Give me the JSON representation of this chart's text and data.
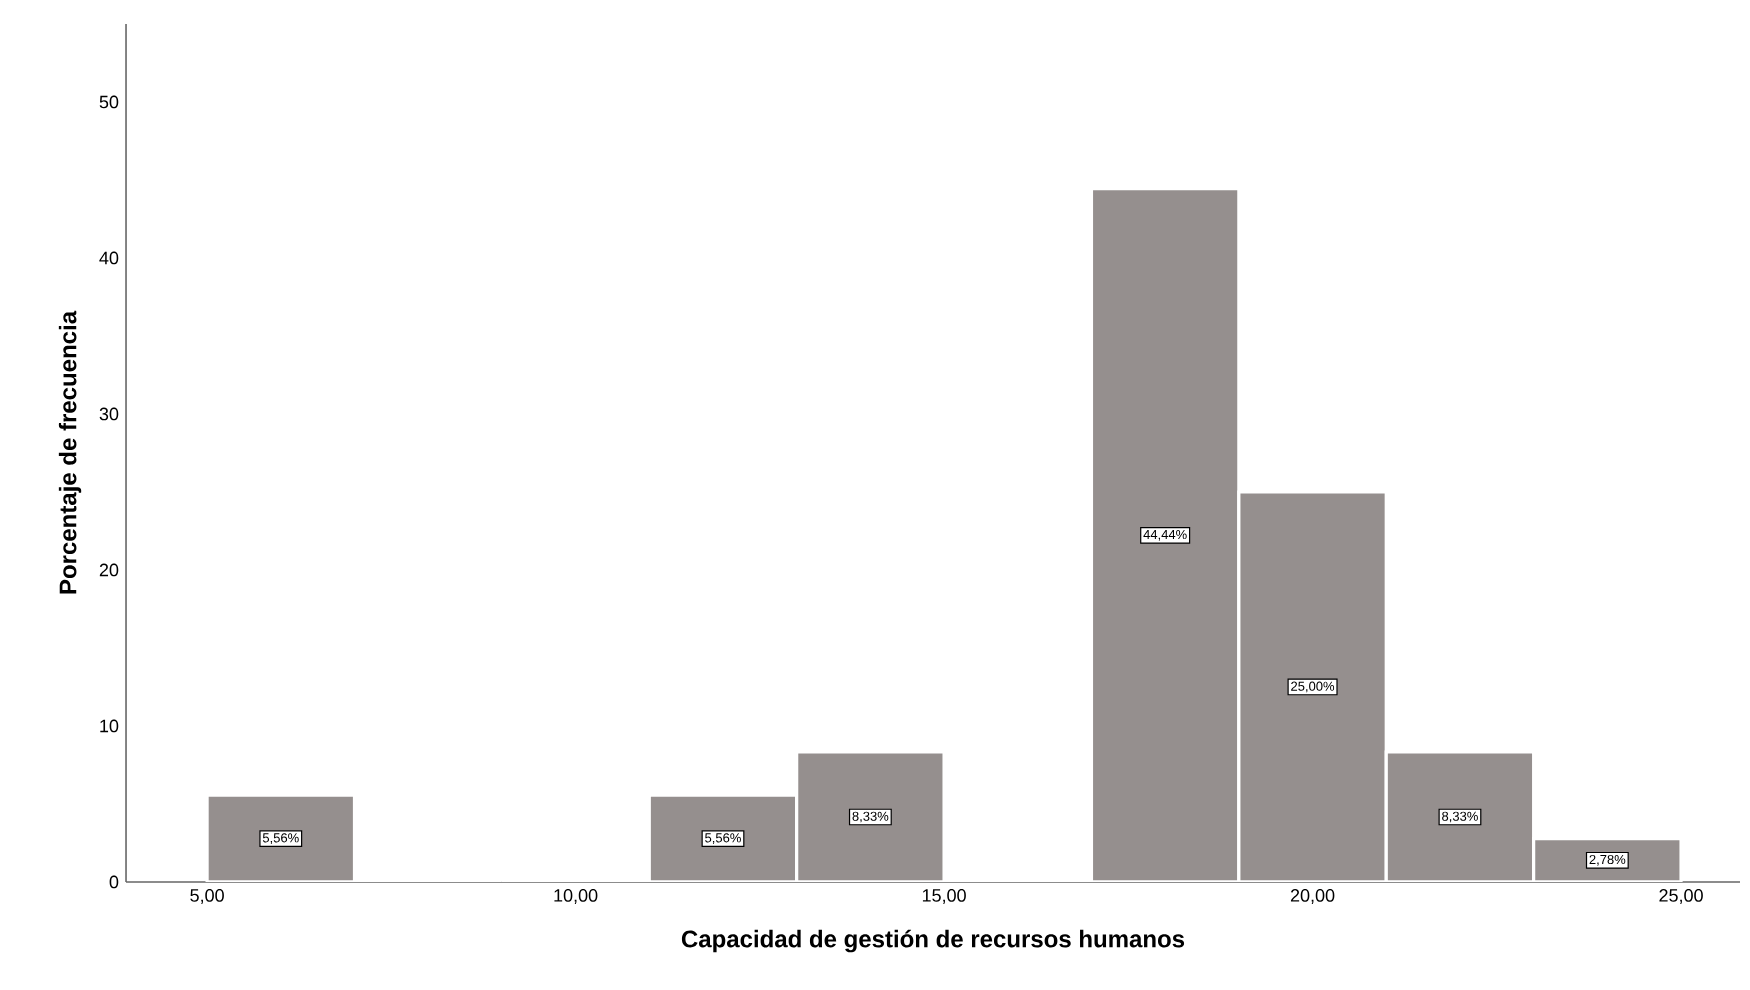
{
  "chart_data": {
    "type": "histogram",
    "xlabel": "Capacidad de gestión de recursos humanos",
    "ylabel": "Porcentaje de frecuencia",
    "bins": [
      5,
      7,
      9,
      11,
      13,
      15,
      17,
      19,
      21,
      23,
      25
    ],
    "values": [
      5.56,
      0,
      0,
      5.56,
      8.33,
      0,
      44.44,
      25.0,
      8.33,
      2.78
    ],
    "value_labels": [
      "5,56%",
      null,
      null,
      "5,56%",
      "8,33%",
      null,
      "44,44%",
      "25,00%",
      "8,33%",
      "2,78%"
    ],
    "color": "#958f8e",
    "xlim": [
      3.9,
      25.8
    ],
    "ylim": [
      0,
      55
    ],
    "xticks": [
      {
        "value": 5,
        "label": "5,00"
      },
      {
        "value": 10,
        "label": "10,00"
      },
      {
        "value": 15,
        "label": "15,00"
      },
      {
        "value": 20,
        "label": "20,00"
      },
      {
        "value": 25,
        "label": "25,00"
      }
    ],
    "yticks": [
      0,
      10,
      20,
      30,
      40,
      50
    ],
    "grid": false
  }
}
